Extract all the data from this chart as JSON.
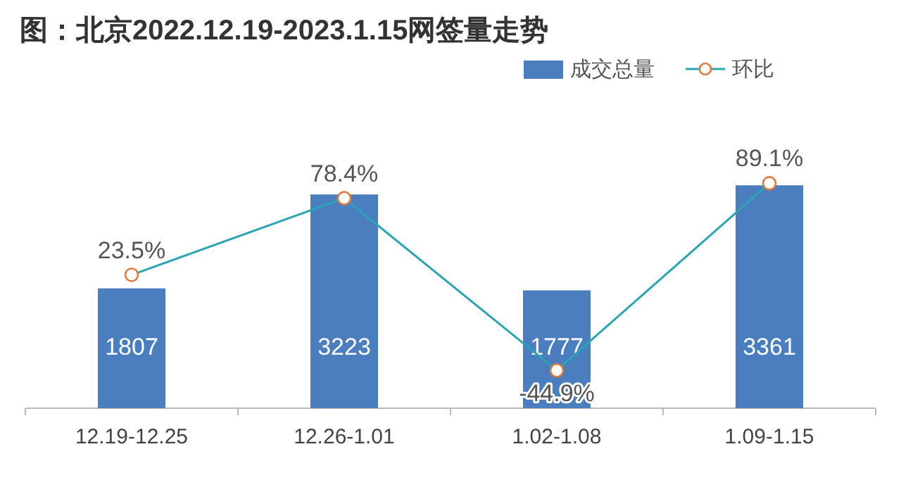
{
  "chart_data": {
    "type": "bar",
    "title": "图：北京2022.12.19-2023.1.15网签量走势",
    "categories": [
      "12.19-12.25",
      "12.26-1.01",
      "1.02-1.08",
      "1.09-1.15"
    ],
    "series": [
      {
        "name": "成交总量",
        "color": "#4a7ebf",
        "values": [
          1807,
          3223,
          1777,
          3361
        ]
      },
      {
        "name": "环比",
        "type": "line",
        "axis": "y2",
        "color": "#2aa5b5",
        "values": [
          23.5,
          78.4,
          -44.9,
          89.1
        ],
        "value_labels": [
          "23.5%",
          "78.4%",
          "-44.9%",
          "89.1%"
        ]
      }
    ],
    "ylim": [
      0,
      5200
    ],
    "y2lim": [
      -72,
      175
    ],
    "data_labels": true,
    "legend": "top right",
    "marker": "circle",
    "grid": false
  }
}
